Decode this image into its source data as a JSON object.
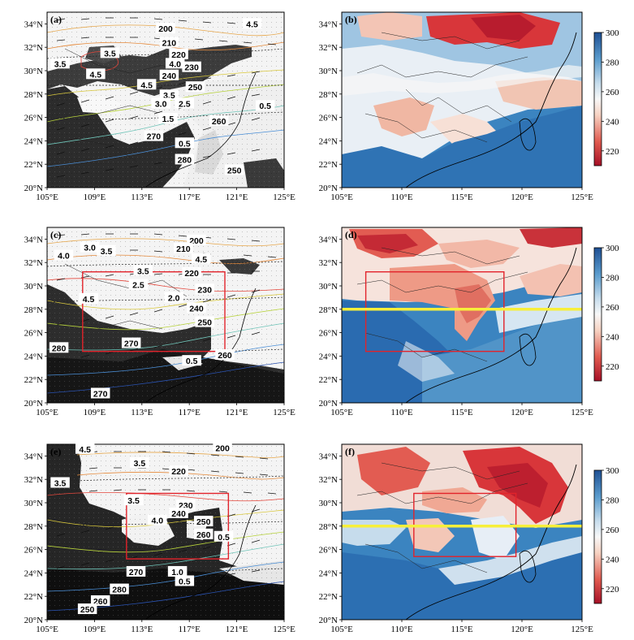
{
  "chart_data": [
    {
      "panel_label": "(a)",
      "type": "heatmap",
      "x_ticks": [
        "105°E",
        "109°E",
        "113°E",
        "117°E",
        "121°E",
        "125°E"
      ],
      "y_ticks": [
        "34°N",
        "32°N",
        "30°N",
        "28°N",
        "26°N",
        "24°N",
        "22°N",
        "20°N"
      ],
      "xlim": [
        105,
        125
      ],
      "ylim": [
        20,
        35
      ],
      "background": "grayscale satellite image",
      "contour_labels": [
        {
          "text": "200",
          "lon": 115.0,
          "lat": 33.6
        },
        {
          "text": "4.5",
          "lon": 122.3,
          "lat": 34.0
        },
        {
          "text": "3.5",
          "lon": 110.3,
          "lat": 31.5
        },
        {
          "text": "210",
          "lon": 115.3,
          "lat": 32.4
        },
        {
          "text": "3.5",
          "lon": 106.1,
          "lat": 30.6
        },
        {
          "text": "220",
          "lon": 116.1,
          "lat": 31.4
        },
        {
          "text": "4.0",
          "lon": 115.8,
          "lat": 30.6
        },
        {
          "text": "4.5",
          "lon": 109.1,
          "lat": 29.7
        },
        {
          "text": "230",
          "lon": 117.2,
          "lat": 30.3
        },
        {
          "text": "240",
          "lon": 115.3,
          "lat": 29.6
        },
        {
          "text": "4.5",
          "lon": 113.4,
          "lat": 28.8
        },
        {
          "text": "250",
          "lon": 117.5,
          "lat": 28.6
        },
        {
          "text": "3.5",
          "lon": 115.3,
          "lat": 27.9
        },
        {
          "text": "3.0",
          "lon": 114.6,
          "lat": 27.2
        },
        {
          "text": "2.5",
          "lon": 116.6,
          "lat": 27.2
        },
        {
          "text": "0.5",
          "lon": 123.4,
          "lat": 27.0
        },
        {
          "text": "1.5",
          "lon": 115.2,
          "lat": 25.9
        },
        {
          "text": "260",
          "lon": 119.5,
          "lat": 25.7
        },
        {
          "text": "270",
          "lon": 114.0,
          "lat": 24.4
        },
        {
          "text": "0.5",
          "lon": 116.6,
          "lat": 23.8
        },
        {
          "text": "280",
          "lon": 116.6,
          "lat": 22.4
        },
        {
          "text": "250",
          "lon": 120.8,
          "lat": 21.5
        }
      ]
    },
    {
      "panel_label": "(b)",
      "type": "heatmap",
      "x_ticks": [
        "105°E",
        "110°E",
        "115°E",
        "120°E",
        "125°E"
      ],
      "y_ticks": [
        "34°N",
        "32°N",
        "30°N",
        "28°N",
        "26°N",
        "24°N",
        "22°N",
        "20°N"
      ],
      "xlim": [
        105,
        125
      ],
      "ylim": [
        20,
        35
      ],
      "colormap": "RdBu",
      "colorbar_ticks": [
        300,
        280,
        260,
        240,
        220
      ]
    },
    {
      "panel_label": "(c)",
      "type": "heatmap",
      "x_ticks": [
        "105°E",
        "109°E",
        "113°E",
        "117°E",
        "121°E",
        "125°E"
      ],
      "y_ticks": [
        "34°N",
        "32°N",
        "30°N",
        "28°N",
        "26°N",
        "24°N",
        "22°N",
        "20°N"
      ],
      "xlim": [
        105,
        125
      ],
      "ylim": [
        20,
        35
      ],
      "background": "grayscale satellite image",
      "boxes": [
        {
          "lon": [
            108.0,
            120.0
          ],
          "lat": [
            24.4,
            31.2
          ],
          "color": "#e2232b"
        }
      ],
      "contour_labels": [
        {
          "text": "200",
          "lon": 117.6,
          "lat": 33.9
        },
        {
          "text": "3.0",
          "lon": 108.6,
          "lat": 33.3
        },
        {
          "text": "3.5",
          "lon": 110.0,
          "lat": 33.0
        },
        {
          "text": "210",
          "lon": 116.5,
          "lat": 33.2
        },
        {
          "text": "4.0",
          "lon": 106.4,
          "lat": 32.6
        },
        {
          "text": "4.5",
          "lon": 118.0,
          "lat": 32.3
        },
        {
          "text": "3.5",
          "lon": 113.1,
          "lat": 31.3
        },
        {
          "text": "220",
          "lon": 117.2,
          "lat": 31.1
        },
        {
          "text": "2.5",
          "lon": 112.7,
          "lat": 30.1
        },
        {
          "text": "230",
          "lon": 118.3,
          "lat": 29.7
        },
        {
          "text": "2.0",
          "lon": 115.7,
          "lat": 29.0
        },
        {
          "text": "4.5",
          "lon": 108.5,
          "lat": 28.9
        },
        {
          "text": "240",
          "lon": 117.6,
          "lat": 28.1
        },
        {
          "text": "250",
          "lon": 118.3,
          "lat": 26.9
        },
        {
          "text": "270",
          "lon": 112.1,
          "lat": 25.1
        },
        {
          "text": "280",
          "lon": 106.0,
          "lat": 24.7
        },
        {
          "text": "0.5",
          "lon": 117.2,
          "lat": 23.6
        },
        {
          "text": "260",
          "lon": 120.0,
          "lat": 24.1
        },
        {
          "text": "270",
          "lon": 109.5,
          "lat": 20.8
        }
      ]
    },
    {
      "panel_label": "(d)",
      "type": "heatmap",
      "x_ticks": [
        "105°E",
        "110°E",
        "115°E",
        "120°E",
        "125°E"
      ],
      "y_ticks": [
        "34°N",
        "32°N",
        "30°N",
        "28°N",
        "26°N",
        "24°N",
        "22°N",
        "20°N"
      ],
      "xlim": [
        105,
        125
      ],
      "ylim": [
        20,
        35
      ],
      "colormap": "RdBu",
      "colorbar_ticks": [
        300,
        280,
        260,
        240,
        220
      ],
      "boxes": [
        {
          "lon": [
            107.0,
            118.5
          ],
          "lat": [
            24.4,
            31.2
          ],
          "color": "#e2232b"
        }
      ],
      "hline": {
        "lat": 28.0,
        "color": "#f7ef3a"
      }
    },
    {
      "panel_label": "(e)",
      "type": "heatmap",
      "x_ticks": [
        "105°E",
        "109°E",
        "113°E",
        "117°E",
        "121°E",
        "125°E"
      ],
      "y_ticks": [
        "34°N",
        "32°N",
        "30°N",
        "28°N",
        "26°N",
        "24°N",
        "22°N",
        "20°N"
      ],
      "xlim": [
        105,
        125
      ],
      "ylim": [
        20,
        35
      ],
      "background": "grayscale satellite image",
      "boxes": [
        {
          "lon": [
            111.7,
            120.3
          ],
          "lat": [
            25.2,
            30.8
          ],
          "color": "#e2232b"
        }
      ],
      "contour_labels": [
        {
          "text": "200",
          "lon": 119.8,
          "lat": 34.7
        },
        {
          "text": "4.5",
          "lon": 108.2,
          "lat": 34.6
        },
        {
          "text": "3.5",
          "lon": 112.8,
          "lat": 33.4
        },
        {
          "text": "220",
          "lon": 116.1,
          "lat": 32.7
        },
        {
          "text": "3.5",
          "lon": 106.1,
          "lat": 31.7
        },
        {
          "text": "3.5",
          "lon": 112.3,
          "lat": 30.2
        },
        {
          "text": "230",
          "lon": 116.7,
          "lat": 29.8
        },
        {
          "text": "240",
          "lon": 116.1,
          "lat": 29.1
        },
        {
          "text": "4.0",
          "lon": 114.3,
          "lat": 28.5
        },
        {
          "text": "250",
          "lon": 118.2,
          "lat": 28.4
        },
        {
          "text": "260",
          "lon": 118.2,
          "lat": 27.3
        },
        {
          "text": "0.5",
          "lon": 119.9,
          "lat": 27.1
        },
        {
          "text": "270",
          "lon": 112.5,
          "lat": 24.1
        },
        {
          "text": "1.0",
          "lon": 116.0,
          "lat": 24.1
        },
        {
          "text": "0.5",
          "lon": 116.6,
          "lat": 23.3
        },
        {
          "text": "280",
          "lon": 111.1,
          "lat": 22.6
        },
        {
          "text": "260",
          "lon": 109.5,
          "lat": 21.6
        },
        {
          "text": "250",
          "lon": 108.4,
          "lat": 20.9
        }
      ]
    },
    {
      "panel_label": "(f)",
      "type": "heatmap",
      "x_ticks": [
        "105°E",
        "110°E",
        "115°E",
        "120°E",
        "125°E"
      ],
      "y_ticks": [
        "34°N",
        "32°N",
        "30°N",
        "28°N",
        "26°N",
        "24°N",
        "22°N",
        "20°N"
      ],
      "xlim": [
        105,
        125
      ],
      "ylim": [
        20,
        35
      ],
      "colormap": "RdBu",
      "colorbar_ticks": [
        300,
        280,
        260,
        240,
        220
      ],
      "boxes": [
        {
          "lon": [
            111.0,
            119.5
          ],
          "lat": [
            25.4,
            30.8
          ],
          "color": "#e2232b"
        }
      ],
      "hline": {
        "lat": 28.0,
        "color": "#f7ef3a"
      }
    }
  ]
}
